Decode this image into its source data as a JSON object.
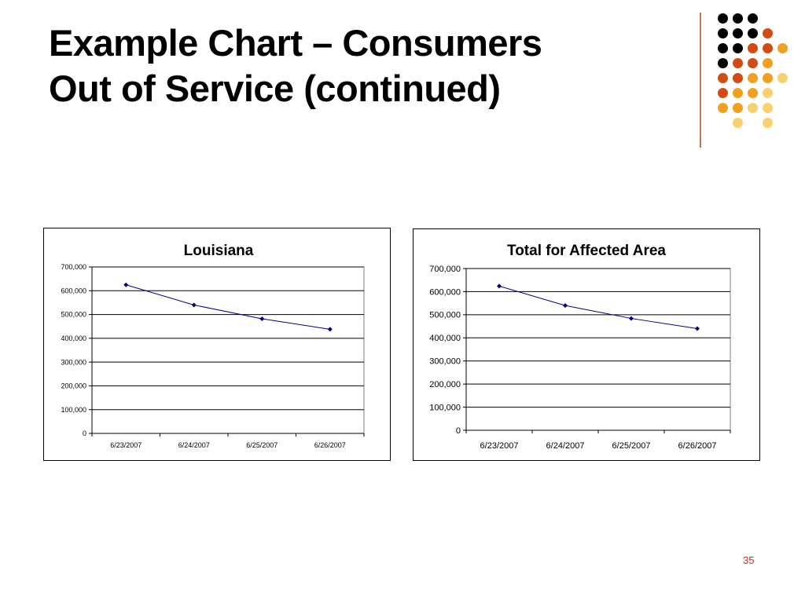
{
  "slide": {
    "title_line1": "Example Chart – Consumers",
    "title_line2": "Out of Service (continued)",
    "page_number": "35"
  },
  "decoration": {
    "dot_colors": [
      "#000000",
      "#d24a14",
      "#f0a020",
      "#f7d070"
    ],
    "rule_color": "#c07850"
  },
  "chart_data": [
    {
      "type": "line",
      "title": "Louisiana",
      "categories": [
        "6/23/2007",
        "6/24/2007",
        "6/25/2007",
        "6/26/2007"
      ],
      "series": [
        {
          "values": [
            625000,
            540000,
            482000,
            438000
          ],
          "color": "#000080"
        }
      ],
      "ylim": [
        0,
        700000
      ],
      "yticks": [
        "0",
        "100,000",
        "200,000",
        "300,000",
        "400,000",
        "500,000",
        "600,000",
        "700,000"
      ],
      "grid": true,
      "legend": "none"
    },
    {
      "type": "line",
      "title": "Total for Affected Area",
      "categories": [
        "6/23/2007",
        "6/24/2007",
        "6/25/2007",
        "6/26/2007"
      ],
      "series": [
        {
          "values": [
            624000,
            540000,
            484000,
            440000
          ],
          "color": "#000080"
        }
      ],
      "ylim": [
        0,
        700000
      ],
      "yticks": [
        "0",
        "100,000",
        "200,000",
        "300,000",
        "400,000",
        "500,000",
        "600,000",
        "700,000"
      ],
      "grid": true,
      "legend": "none"
    }
  ]
}
